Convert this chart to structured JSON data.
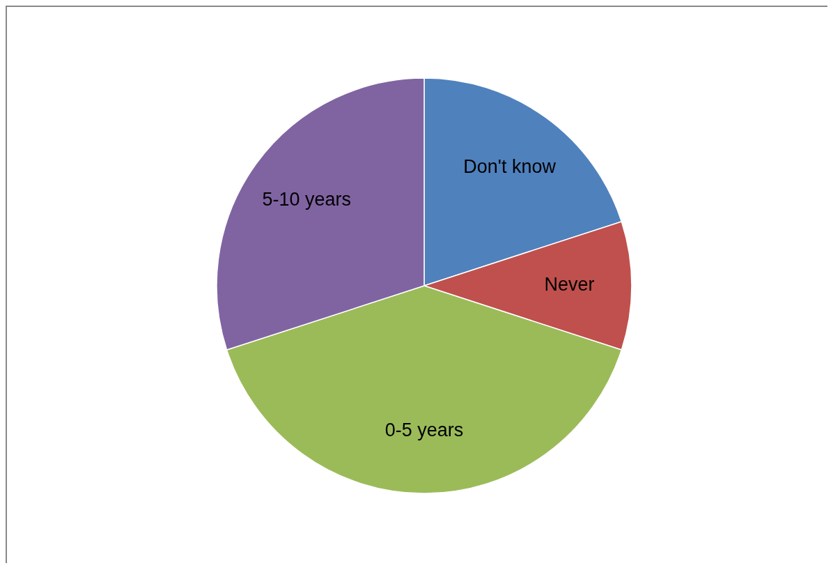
{
  "chart_data": {
    "type": "pie",
    "categories": [
      "Don't know",
      "Never",
      "0-5 years",
      "5-10 years"
    ],
    "values": [
      20,
      10,
      40,
      30
    ],
    "colors": [
      "#4f81bd",
      "#c0504d",
      "#9bbb59",
      "#8064a2"
    ]
  }
}
